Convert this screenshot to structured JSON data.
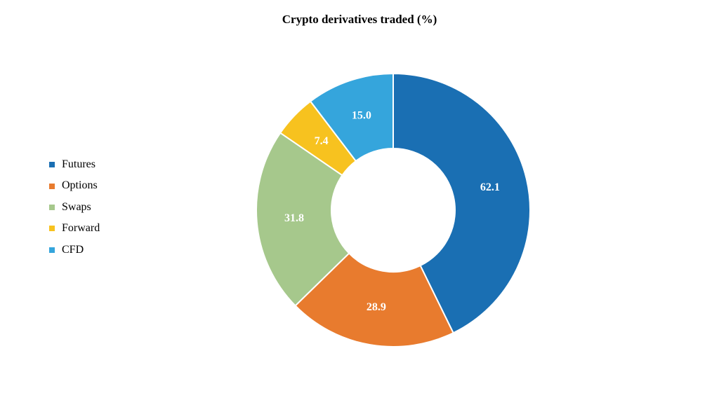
{
  "chart": {
    "type": "donut",
    "title": "Crypto derivatives traded (%)",
    "title_fontsize": 17,
    "title_fontweight": "bold",
    "background_color": "#ffffff",
    "outer_radius": 195,
    "inner_radius": 88,
    "start_angle_deg": 0,
    "direction": "clockwise",
    "label_color": "#ffffff",
    "label_fontsize": 16,
    "label_fontweight": "bold",
    "label_decimals": 1,
    "series": [
      {
        "name": "Futures",
        "value": 62.1,
        "color": "#1a6fb3"
      },
      {
        "name": "Options",
        "value": 28.9,
        "color": "#e87b2e"
      },
      {
        "name": "Swaps",
        "value": 31.8,
        "color": "#a6c88c"
      },
      {
        "name": "Forward",
        "value": 7.4,
        "color": "#f7c21f"
      },
      {
        "name": "CFD",
        "value": 15.0,
        "color": "#35a5dc"
      }
    ],
    "legend": {
      "position": "left",
      "marker_shape": "square",
      "marker_size": 8,
      "fontsize": 16
    }
  }
}
